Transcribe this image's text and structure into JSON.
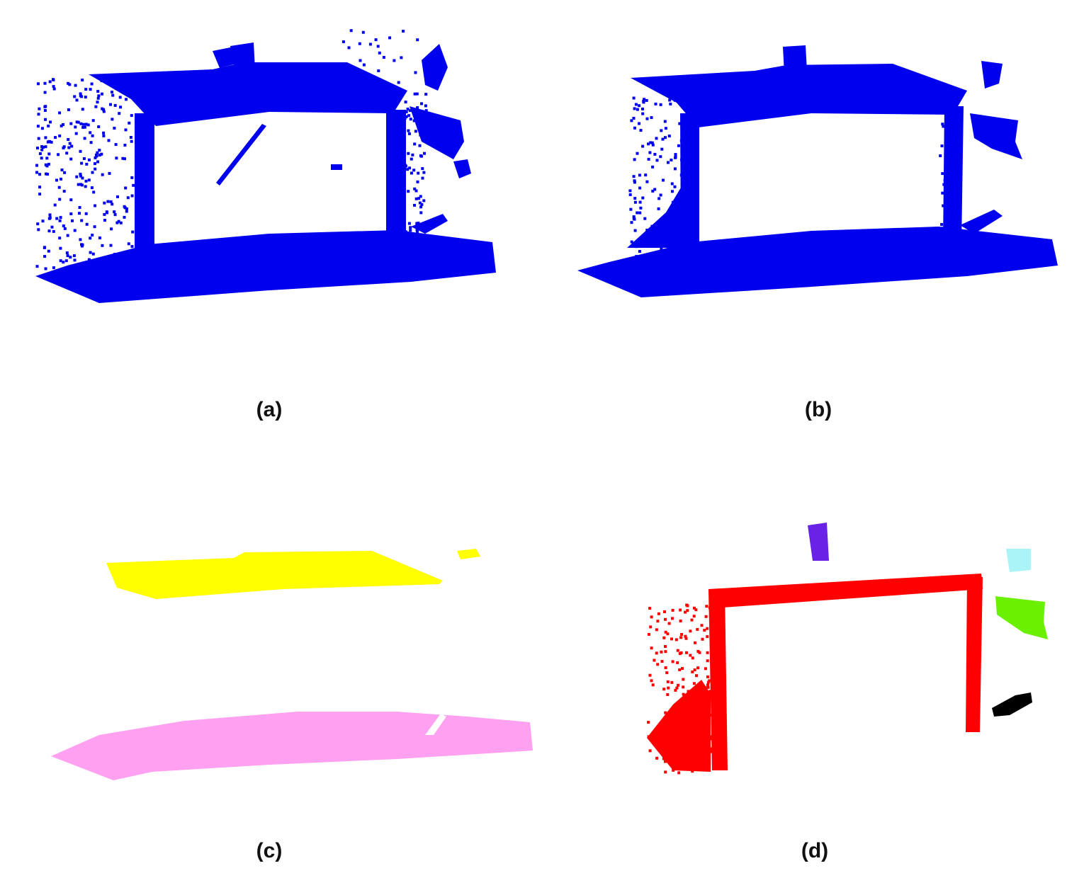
{
  "figure": {
    "panels": [
      {
        "id": "a",
        "caption": "(a)",
        "description_colors": [
          "#0000ee"
        ]
      },
      {
        "id": "b",
        "caption": "(b)",
        "description_colors": [
          "#0000ee"
        ]
      },
      {
        "id": "c",
        "caption": "(c)",
        "description_colors": [
          "#ffff00",
          "#ffa0f0"
        ]
      },
      {
        "id": "d",
        "caption": "(d)",
        "description_colors": [
          "#ff0000",
          "#6a22e6",
          "#aaf4f8",
          "#6af000",
          "#000000"
        ]
      }
    ],
    "colors": {
      "point_blue": "#0000ee",
      "yellow_plane": "#ffff00",
      "pink_plane": "#ffa0f0",
      "red_frame": "#ff0000",
      "purple_cluster": "#6a22e6",
      "cyan_cluster": "#aaf4f8",
      "green_cluster": "#6af000",
      "black_cluster": "#000000"
    }
  }
}
